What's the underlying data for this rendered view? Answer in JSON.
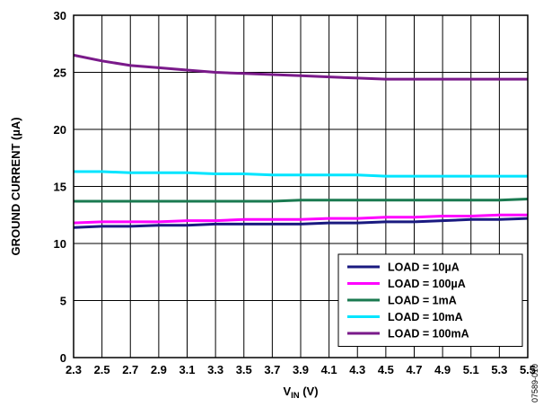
{
  "chart_data": {
    "type": "line",
    "xlabel": "V",
    "xlabel_sub": "IN",
    "xlabel_unit": " (V)",
    "ylabel": "GROUND CURRENT (µA)",
    "xlim": [
      2.3,
      5.5
    ],
    "ylim": [
      0,
      30
    ],
    "x_ticks": [
      2.3,
      2.5,
      2.7,
      2.9,
      3.1,
      3.3,
      3.5,
      3.7,
      3.9,
      4.1,
      4.3,
      4.5,
      4.7,
      4.9,
      5.1,
      5.3,
      5.5
    ],
    "y_ticks": [
      0,
      5,
      10,
      15,
      20,
      25,
      30
    ],
    "grid": true,
    "legend_position": "bottom-right",
    "series": [
      {
        "name": "LOAD = 10µA",
        "color": "#1a1a80",
        "x": [
          2.3,
          2.5,
          2.7,
          2.9,
          3.1,
          3.3,
          3.5,
          3.7,
          3.9,
          4.1,
          4.3,
          4.5,
          4.7,
          4.9,
          5.1,
          5.3,
          5.5
        ],
        "values": [
          11.4,
          11.5,
          11.5,
          11.6,
          11.6,
          11.7,
          11.7,
          11.7,
          11.7,
          11.8,
          11.8,
          11.9,
          11.9,
          12.0,
          12.1,
          12.1,
          12.2
        ]
      },
      {
        "name": "LOAD = 100µA",
        "color": "#ff00ff",
        "x": [
          2.3,
          2.5,
          2.7,
          2.9,
          3.1,
          3.3,
          3.5,
          3.7,
          3.9,
          4.1,
          4.3,
          4.5,
          4.7,
          4.9,
          5.1,
          5.3,
          5.5
        ],
        "values": [
          11.8,
          11.9,
          11.9,
          11.9,
          12.0,
          12.0,
          12.1,
          12.1,
          12.1,
          12.2,
          12.2,
          12.3,
          12.3,
          12.4,
          12.4,
          12.5,
          12.5
        ]
      },
      {
        "name": "LOAD = 1mA",
        "color": "#1a7a50",
        "x": [
          2.3,
          2.5,
          2.7,
          2.9,
          3.1,
          3.3,
          3.5,
          3.7,
          3.9,
          4.1,
          4.3,
          4.5,
          4.7,
          4.9,
          5.1,
          5.3,
          5.5
        ],
        "values": [
          13.7,
          13.7,
          13.7,
          13.7,
          13.7,
          13.7,
          13.7,
          13.7,
          13.8,
          13.8,
          13.8,
          13.8,
          13.8,
          13.8,
          13.8,
          13.8,
          13.9
        ]
      },
      {
        "name": "LOAD = 10mA",
        "color": "#00e5ff",
        "x": [
          2.3,
          2.5,
          2.7,
          2.9,
          3.1,
          3.3,
          3.5,
          3.7,
          3.9,
          4.1,
          4.3,
          4.5,
          4.7,
          4.9,
          5.1,
          5.3,
          5.5
        ],
        "values": [
          16.3,
          16.3,
          16.2,
          16.2,
          16.2,
          16.1,
          16.1,
          16.0,
          16.0,
          16.0,
          16.0,
          15.9,
          15.9,
          15.9,
          15.9,
          15.9,
          15.9
        ]
      },
      {
        "name": "LOAD = 100mA",
        "color": "#7a1a8a",
        "x": [
          2.3,
          2.5,
          2.7,
          2.9,
          3.1,
          3.3,
          3.5,
          3.7,
          3.9,
          4.1,
          4.3,
          4.5,
          4.7,
          4.9,
          5.1,
          5.3,
          5.5
        ],
        "values": [
          26.5,
          26.0,
          25.6,
          25.4,
          25.2,
          25.0,
          24.9,
          24.8,
          24.7,
          24.6,
          24.5,
          24.4,
          24.4,
          24.4,
          24.4,
          24.4,
          24.4
        ]
      }
    ]
  },
  "figure_id": "07589-010"
}
